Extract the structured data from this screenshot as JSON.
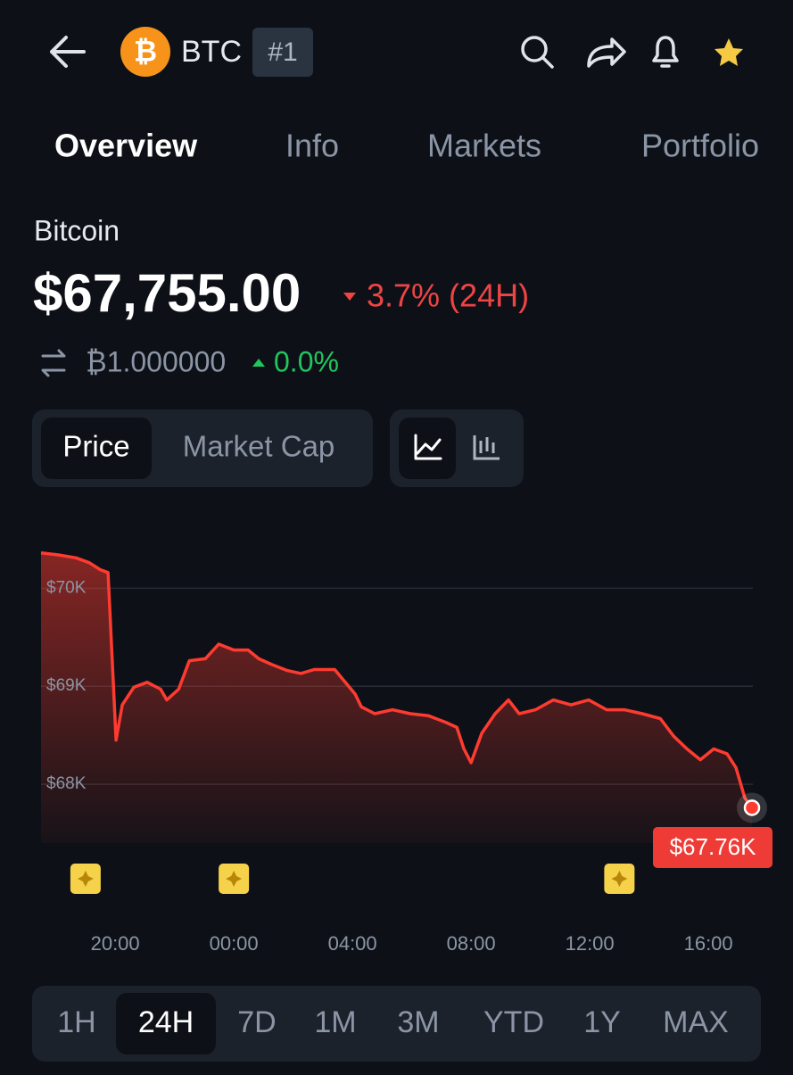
{
  "header": {
    "symbol": "BTC",
    "rank": "#1"
  },
  "tabs": [
    "Overview",
    "Info",
    "Markets",
    "Portfolio"
  ],
  "coin_name": "Bitcoin",
  "price": "$67,755.00",
  "change": "3.7% (24H)",
  "btc_price": "₿1.000000",
  "btc_change": "0.0%",
  "chart_toggle": [
    "Price",
    "Market Cap"
  ],
  "chart_data": {
    "type": "line",
    "color": "#ff3b30",
    "x": [
      17.5,
      18.08,
      18.68,
      19.13,
      19.49,
      19.76,
      20.03,
      20.24,
      20.63,
      21.08,
      21.53,
      21.74,
      22.14,
      22.5,
      23.04,
      23.49,
      24.0,
      24.48,
      24.84,
      25.29,
      25.8,
      26.26,
      26.71,
      27.4,
      27.76,
      28.09,
      28.3,
      28.75,
      29.35,
      29.95,
      30.56,
      31.16,
      31.52,
      31.76,
      32.0,
      32.36,
      32.81,
      33.26,
      33.62,
      34.17,
      34.77,
      35.37,
      35.97,
      36.57,
      37.17,
      37.77,
      38.38,
      38.83,
      39.28,
      39.73,
      40.18,
      40.63,
      40.93,
      41.23,
      41.47
    ],
    "values": [
      70360,
      70340,
      70310,
      70260,
      70190,
      70160,
      68450,
      68810,
      68990,
      69040,
      68970,
      68860,
      68970,
      69260,
      69280,
      69430,
      69370,
      69370,
      69280,
      69220,
      69160,
      69130,
      69170,
      69170,
      69040,
      68920,
      68790,
      68720,
      68760,
      68720,
      68700,
      68630,
      68580,
      68360,
      68220,
      68520,
      68720,
      68860,
      68720,
      68760,
      68860,
      68810,
      68860,
      68760,
      68760,
      68720,
      68670,
      68490,
      68360,
      68250,
      68360,
      68310,
      68170,
      67860,
      67760
    ],
    "xlim": [
      17.5,
      41.5
    ],
    "ylim": [
      67400,
      70540
    ],
    "xticks": [
      {
        "value": 20,
        "label": "20:00"
      },
      {
        "value": 24,
        "label": "00:00"
      },
      {
        "value": 28,
        "label": "04:00"
      },
      {
        "value": 32,
        "label": "08:00"
      },
      {
        "value": 36,
        "label": "12:00"
      },
      {
        "value": 40,
        "label": "16:00"
      }
    ],
    "yticks": [
      {
        "value": 68000,
        "label": "$68K"
      },
      {
        "value": 69000,
        "label": "$69K"
      },
      {
        "value": 70000,
        "label": "$70K"
      }
    ],
    "grid": true,
    "last_price_label": "$67.76K",
    "events": [
      19,
      24,
      37
    ]
  },
  "ranges": [
    "1H",
    "24H",
    "7D",
    "1M",
    "3M",
    "YTD",
    "1Y",
    "MAX"
  ]
}
